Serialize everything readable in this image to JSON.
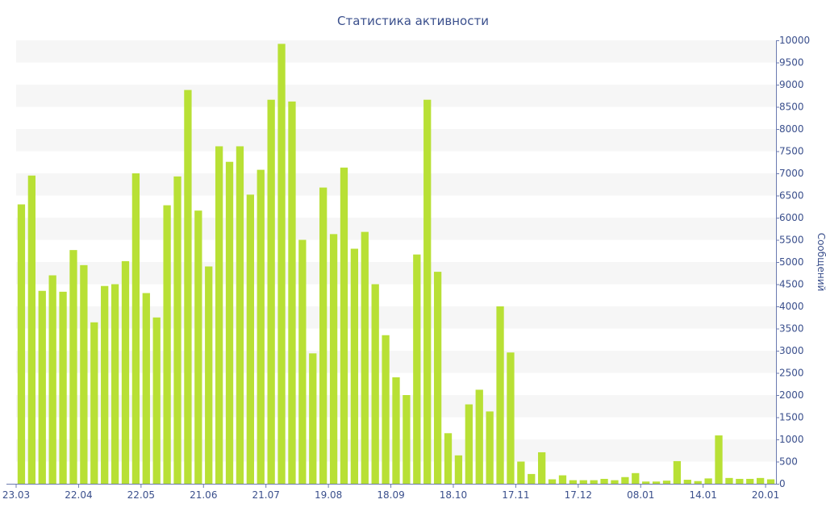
{
  "chart_data": {
    "type": "bar",
    "title": "Статистика активности",
    "ylabel": "Сообщений",
    "xlabel": "",
    "ylim": [
      0,
      10000
    ],
    "y_ticks": [
      0,
      500,
      1000,
      1500,
      2000,
      2500,
      3000,
      3500,
      4000,
      4500,
      5000,
      5500,
      6000,
      6500,
      7000,
      7500,
      8000,
      8500,
      9000,
      9500,
      10000
    ],
    "y_axis_side": "right",
    "grid": "alternating horizontal bands",
    "x_tick_labels": [
      {
        "index": 0,
        "label": "23.03"
      },
      {
        "index": 6,
        "label": "22.04"
      },
      {
        "index": 12,
        "label": "22.05"
      },
      {
        "index": 18,
        "label": "21.06"
      },
      {
        "index": 24,
        "label": "21.07"
      },
      {
        "index": 30,
        "label": "19.08"
      },
      {
        "index": 36,
        "label": "18.09"
      },
      {
        "index": 42,
        "label": "18.10"
      },
      {
        "index": 48,
        "label": "17.11"
      },
      {
        "index": 54,
        "label": "17.12"
      },
      {
        "index": 60,
        "label": "08.01"
      },
      {
        "index": 66,
        "label": "14.01"
      },
      {
        "index": 72,
        "label": "20.01"
      }
    ],
    "values": [
      6300,
      6950,
      4350,
      4700,
      4330,
      5270,
      4930,
      3640,
      4460,
      4500,
      5020,
      7000,
      4300,
      3750,
      6280,
      6930,
      8880,
      6160,
      4900,
      7610,
      7260,
      7610,
      6520,
      7080,
      8660,
      9920,
      8620,
      5500,
      2940,
      6680,
      5630,
      7130,
      5300,
      5680,
      4500,
      3350,
      2400,
      2000,
      5170,
      8660,
      4780,
      1140,
      640,
      1790,
      2120,
      1630,
      4000,
      2960,
      500,
      220,
      710,
      100,
      190,
      80,
      80,
      80,
      110,
      80,
      150,
      240,
      50,
      50,
      70,
      510,
      90,
      60,
      120,
      1090,
      130,
      110,
      110,
      130,
      100
    ],
    "colors": {
      "bar": "#b8e035",
      "band": "#f6f6f6",
      "text": "#3a4f8c",
      "axis": "#6b7ab0"
    }
  }
}
